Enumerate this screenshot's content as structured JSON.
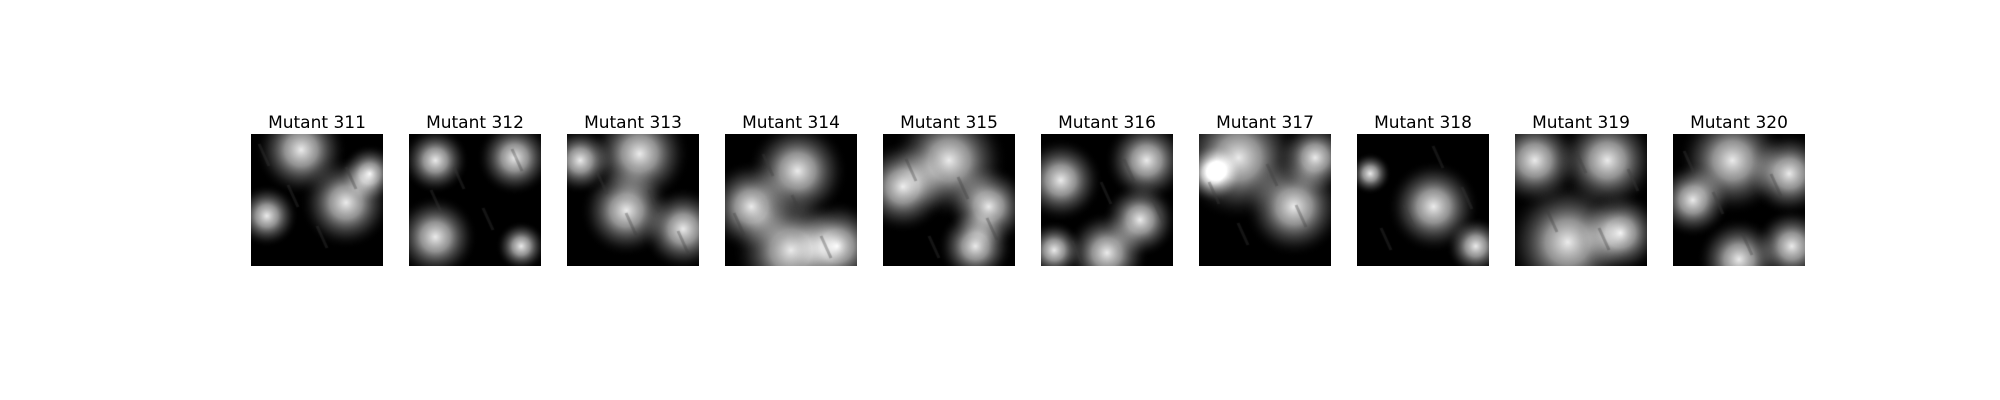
{
  "panels": [
    {
      "title": "Mutant 311",
      "blobs": [
        [
          0.38,
          0.12,
          0.22
        ],
        [
          0.72,
          0.52,
          0.22
        ],
        [
          0.12,
          0.62,
          0.15
        ],
        [
          0.9,
          0.3,
          0.14
        ]
      ]
    },
    {
      "title": "Mutant 312",
      "blobs": [
        [
          0.2,
          0.2,
          0.16
        ],
        [
          0.8,
          0.18,
          0.18
        ],
        [
          0.2,
          0.78,
          0.2
        ],
        [
          0.85,
          0.85,
          0.12
        ]
      ]
    },
    {
      "title": "Mutant 313",
      "blobs": [
        [
          0.55,
          0.15,
          0.24
        ],
        [
          0.45,
          0.58,
          0.22
        ],
        [
          0.1,
          0.2,
          0.16
        ],
        [
          0.88,
          0.72,
          0.2
        ]
      ]
    },
    {
      "title": "Mutant 314",
      "blobs": [
        [
          0.55,
          0.28,
          0.24
        ],
        [
          0.2,
          0.55,
          0.22
        ],
        [
          0.5,
          0.88,
          0.28
        ],
        [
          0.85,
          0.85,
          0.22
        ]
      ]
    },
    {
      "title": "Mutant 315",
      "blobs": [
        [
          0.5,
          0.2,
          0.28
        ],
        [
          0.15,
          0.4,
          0.22
        ],
        [
          0.8,
          0.55,
          0.2
        ],
        [
          0.7,
          0.85,
          0.18
        ]
      ]
    },
    {
      "title": "Mutant 316",
      "blobs": [
        [
          0.8,
          0.2,
          0.2
        ],
        [
          0.15,
          0.35,
          0.2
        ],
        [
          0.75,
          0.65,
          0.18
        ],
        [
          0.5,
          0.9,
          0.2
        ],
        [
          0.1,
          0.88,
          0.14
        ]
      ]
    },
    {
      "title": "Mutant 317",
      "blobs": [
        [
          0.3,
          0.18,
          0.3
        ],
        [
          0.72,
          0.55,
          0.24
        ],
        [
          0.88,
          0.18,
          0.18
        ],
        [
          0.1,
          0.3,
          0.14
        ]
      ]
    },
    {
      "title": "Mutant 318",
      "blobs": [
        [
          0.58,
          0.55,
          0.22
        ],
        [
          0.9,
          0.85,
          0.14
        ],
        [
          0.1,
          0.3,
          0.1
        ]
      ]
    },
    {
      "title": "Mutant 319",
      "blobs": [
        [
          0.15,
          0.2,
          0.22
        ],
        [
          0.7,
          0.2,
          0.24
        ],
        [
          0.4,
          0.82,
          0.3
        ],
        [
          0.8,
          0.75,
          0.2
        ]
      ]
    },
    {
      "title": "Mutant 320",
      "blobs": [
        [
          0.45,
          0.2,
          0.26
        ],
        [
          0.88,
          0.3,
          0.2
        ],
        [
          0.15,
          0.5,
          0.18
        ],
        [
          0.5,
          0.95,
          0.2
        ],
        [
          0.9,
          0.85,
          0.18
        ]
      ]
    }
  ]
}
